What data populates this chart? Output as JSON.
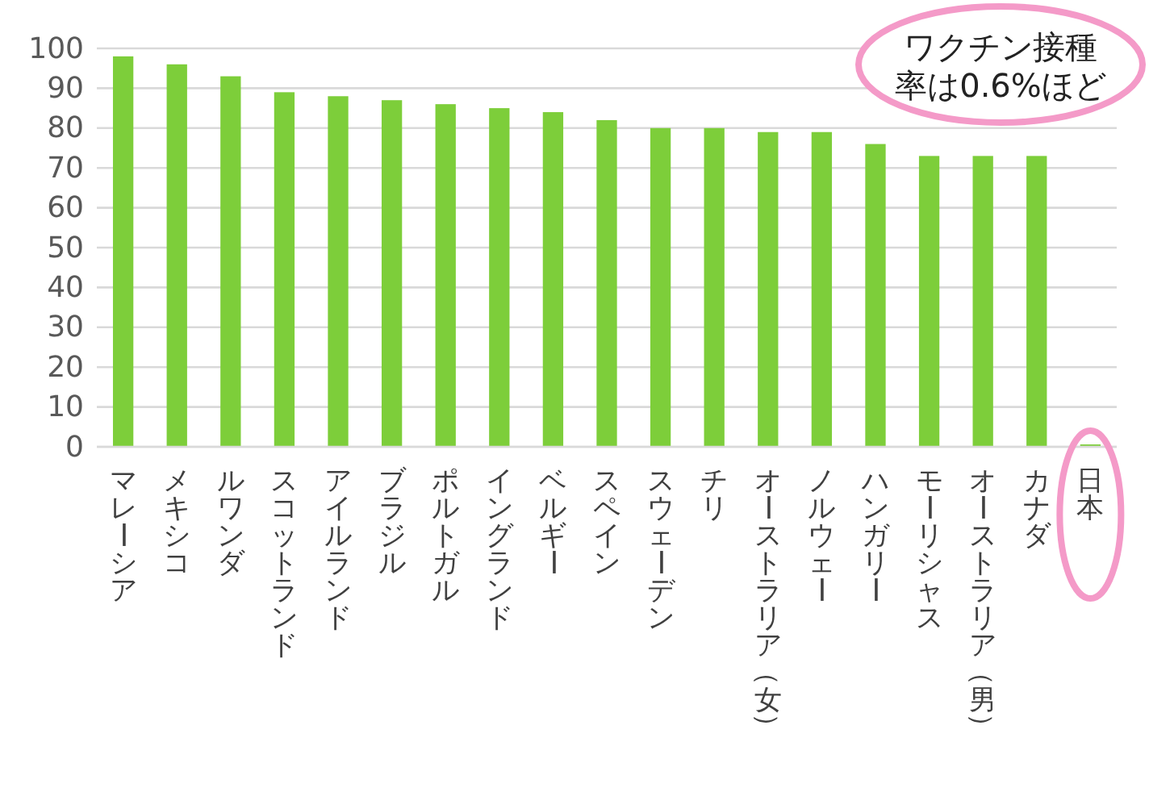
{
  "chart_data": {
    "type": "bar",
    "categories": [
      "マレーシア",
      "メキシコ",
      "ルワンダ",
      "スコットランド",
      "アイルランド",
      "ブラジル",
      "ポルトガル",
      "イングランド",
      "ベルギー",
      "スペイン",
      "スウェーデン",
      "チリ",
      "オーストラリア（女）",
      "ノルウェー",
      "ハンガリー",
      "モーリシャス",
      "オーストラリア（男）",
      "カナダ",
      "日本"
    ],
    "values": [
      98,
      96,
      93,
      89,
      88,
      87,
      86,
      85,
      84,
      82,
      80,
      80,
      79,
      79,
      76,
      73,
      73,
      73,
      0.6
    ],
    "color": "#7dce3a",
    "ylim": [
      0,
      100
    ],
    "yticks": [
      0,
      10,
      20,
      30,
      40,
      50,
      60,
      70,
      80,
      90,
      100
    ],
    "grid": "y",
    "annotations": [
      "ワクチン接種率は0.6%ほど"
    ]
  }
}
